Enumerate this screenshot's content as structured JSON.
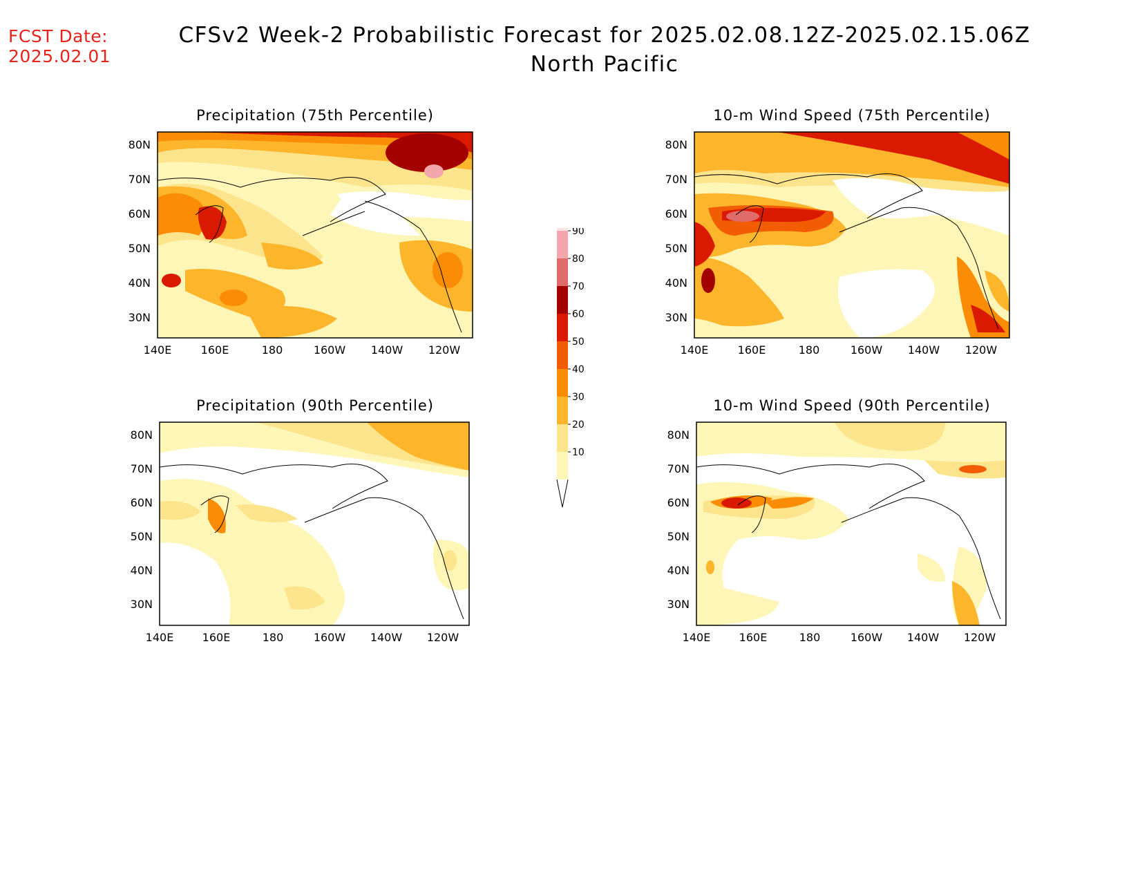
{
  "header": {
    "fcst_label": "FCST Date:",
    "fcst_date": "2025.02.01",
    "title_line1": "CFSv2 Week-2 Probabilistic Forecast for 2025.02.08.12Z-2025.02.15.06Z",
    "title_line2": "North Pacific"
  },
  "axes": {
    "lat_labels": [
      "80N",
      "70N",
      "60N",
      "50N",
      "40N",
      "30N"
    ],
    "lon_labels": [
      "140E",
      "160E",
      "180",
      "160W",
      "140W",
      "120W"
    ]
  },
  "panels": [
    {
      "id": "p75",
      "title": "Precipitation (75th Percentile)"
    },
    {
      "id": "p90",
      "title": "Precipitation (90th Percentile)"
    },
    {
      "id": "w75",
      "title": "10-m Wind Speed (75th Percentile)"
    },
    {
      "id": "w90",
      "title": "10-m Wind Speed (90th Percentile)"
    }
  ],
  "colorbar": {
    "levels": [
      "10",
      "20",
      "30",
      "40",
      "50",
      "60",
      "70",
      "80",
      "90"
    ],
    "colors": [
      "#fdf6b6",
      "#fce48c",
      "#fdb52b",
      "#fb8c05",
      "#f25d03",
      "#d91a00",
      "#a30000",
      "#df6b6b",
      "#f3a6ab",
      "#fde2e5"
    ]
  }
}
